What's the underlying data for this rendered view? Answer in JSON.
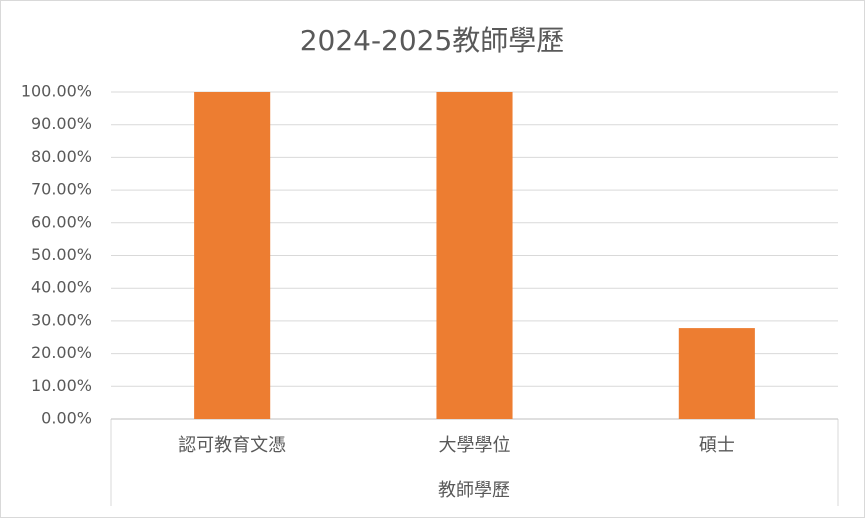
{
  "chart_data": {
    "type": "bar",
    "title": "2024-2025教師學歷",
    "x_label": "教師學歷",
    "categories": [
      "認可教育文憑",
      "大學學位",
      "碩士"
    ],
    "values": [
      100,
      100,
      27.8
    ],
    "color": "#ed7d31",
    "ylim": [
      0,
      100
    ],
    "yticks": [
      {
        "value": 0,
        "label": "0.00%"
      },
      {
        "value": 10,
        "label": "10.00%"
      },
      {
        "value": 20,
        "label": "20.00%"
      },
      {
        "value": 30,
        "label": "30.00%"
      },
      {
        "value": 40,
        "label": "40.00%"
      },
      {
        "value": 50,
        "label": "50.00%"
      },
      {
        "value": 60,
        "label": "60.00%"
      },
      {
        "value": 70,
        "label": "70.00%"
      },
      {
        "value": 80,
        "label": "80.00%"
      },
      {
        "value": 90,
        "label": "90.00%"
      },
      {
        "value": 100,
        "label": "100.00%"
      }
    ],
    "grid": true
  }
}
